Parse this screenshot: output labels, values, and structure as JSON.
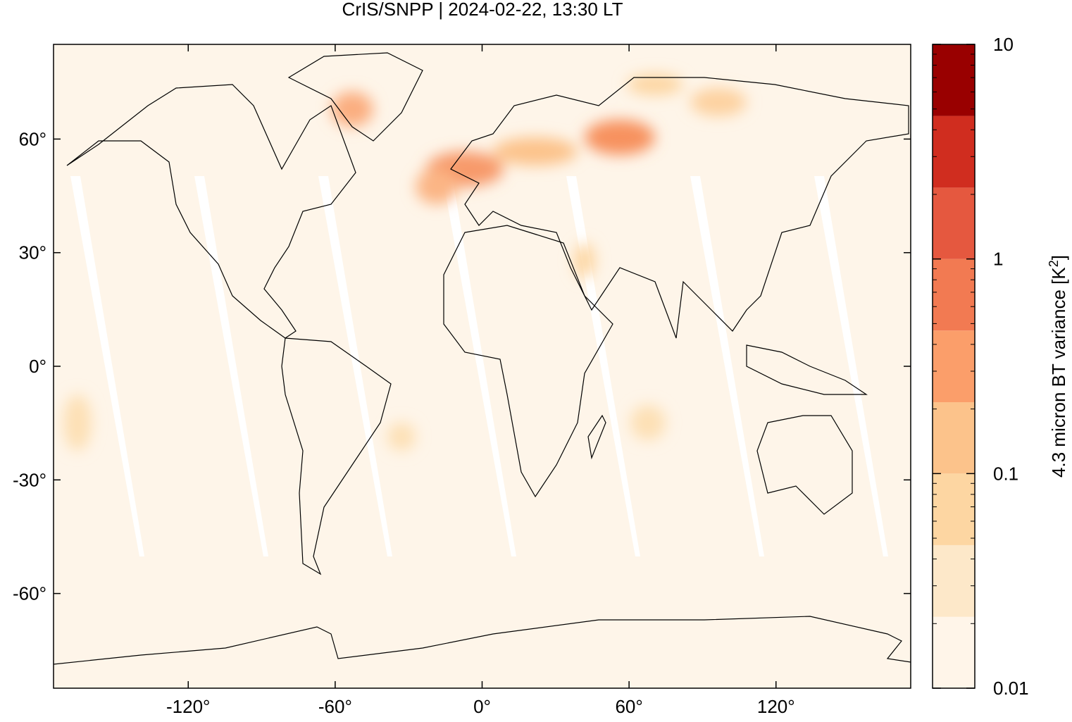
{
  "chart_data": {
    "type": "map",
    "title": "CrIS/SNPP | 2024-02-22, 13:30 LT",
    "xlim": [
      -175,
      175
    ],
    "ylim": [
      -85,
      85
    ],
    "xticks": [
      {
        "value": -120,
        "label": "-120°"
      },
      {
        "value": -60,
        "label": "-60°"
      },
      {
        "value": 0,
        "label": "0°"
      },
      {
        "value": 60,
        "label": "60°"
      },
      {
        "value": 120,
        "label": "120°"
      }
    ],
    "yticks": [
      {
        "value": 60,
        "label": "60°"
      },
      {
        "value": 30,
        "label": "30°"
      },
      {
        "value": 0,
        "label": "0°"
      },
      {
        "value": -30,
        "label": "-30°"
      },
      {
        "value": -60,
        "label": "-60°"
      }
    ],
    "colorbar": {
      "label_parts": [
        "4.3 micron BT variance [K",
        "2",
        "]"
      ],
      "log": true,
      "lim": [
        0.01,
        10
      ],
      "ticks": [
        0.01,
        0.1,
        1,
        10
      ],
      "levels": [
        0.01,
        0.0215,
        0.0464,
        0.1,
        0.215,
        0.464,
        1,
        2.15,
        4.64,
        10
      ],
      "colors": [
        "#fff5e9",
        "#fde8c9",
        "#fdd6a2",
        "#fcc38b",
        "#fb9e6a",
        "#f27a52",
        "#e5583f",
        "#d02d1f",
        "#990000"
      ]
    }
  }
}
